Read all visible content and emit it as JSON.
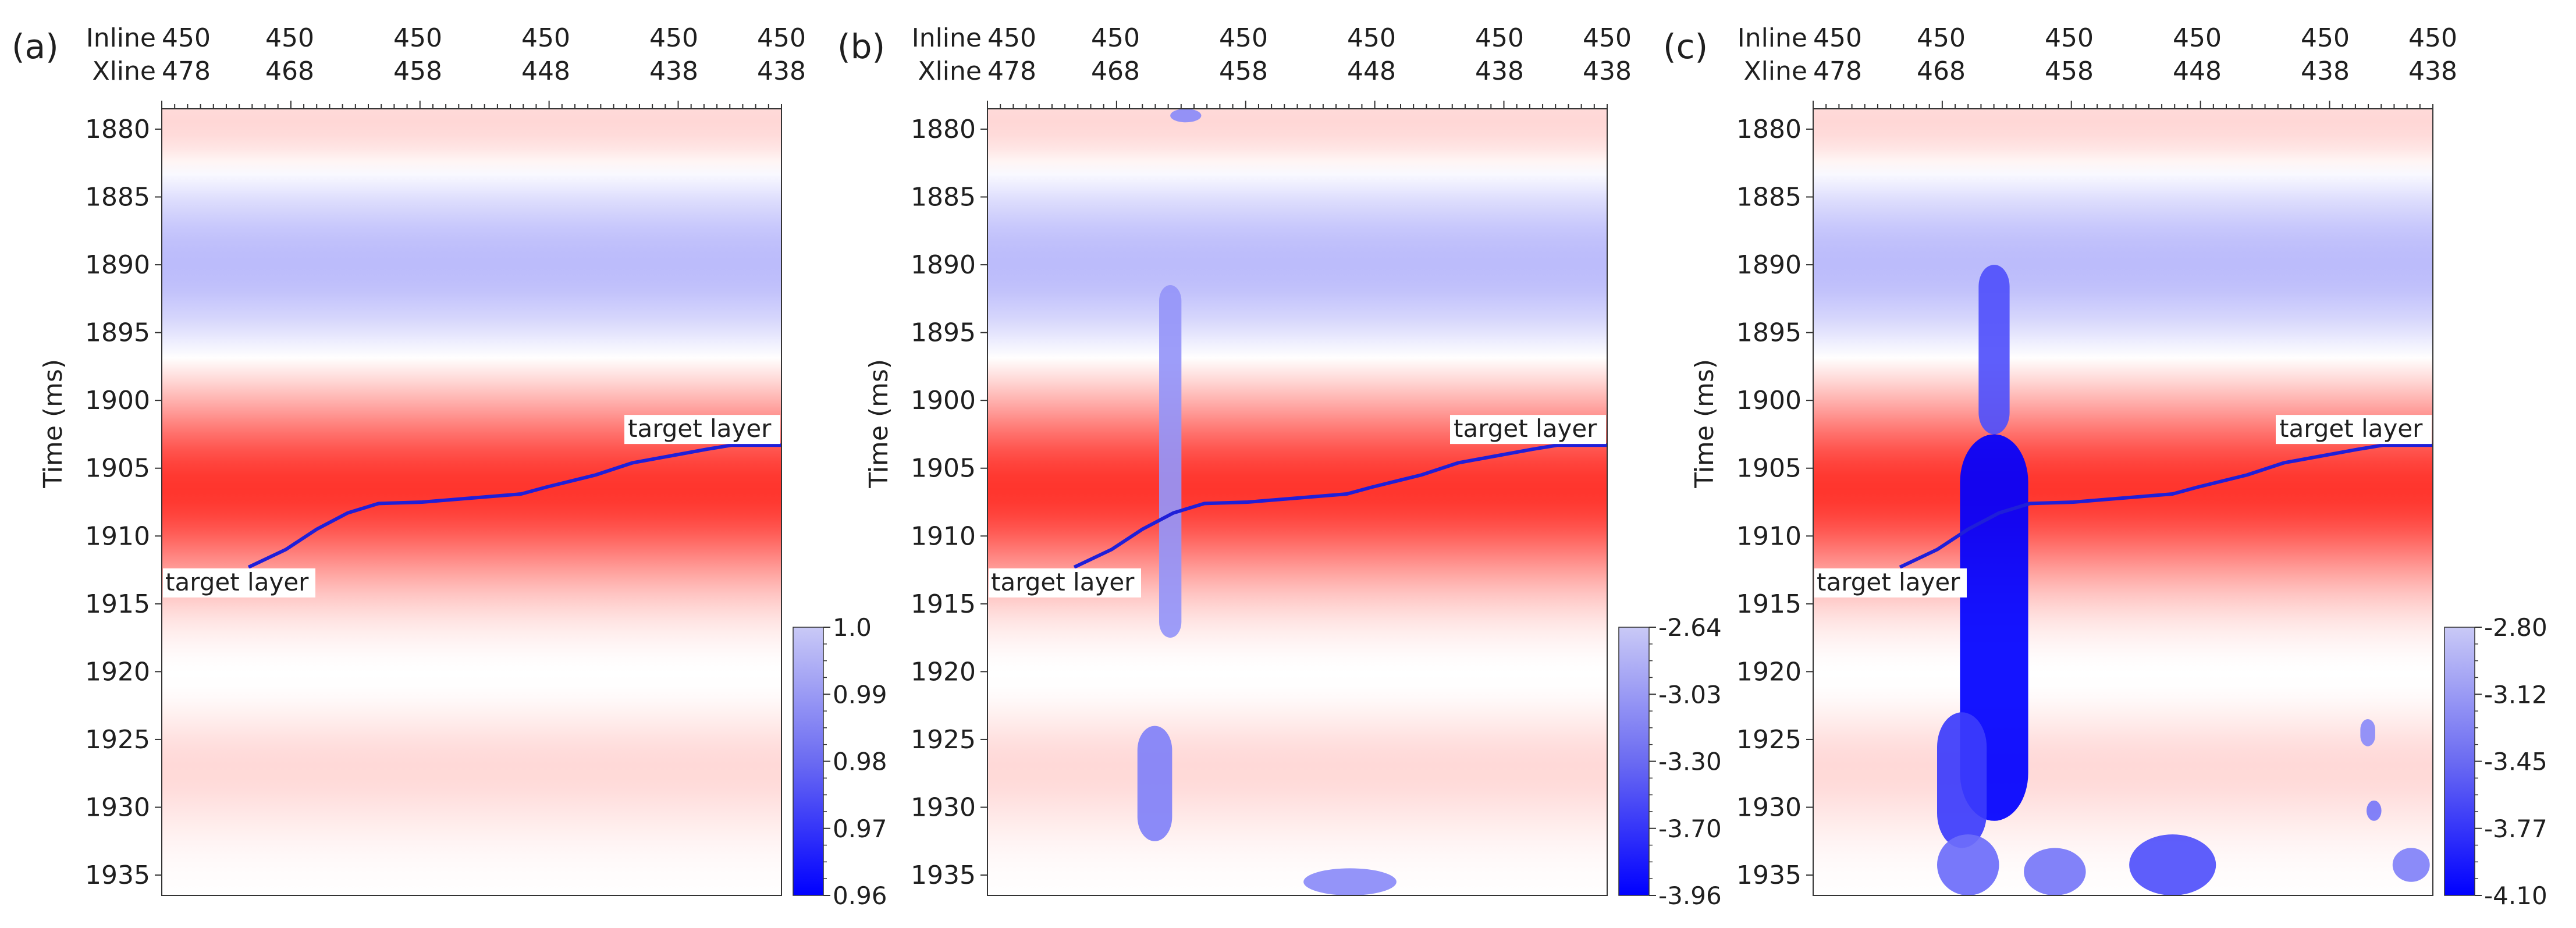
{
  "colors": {
    "red": "#ff2a22",
    "blue": "#0000ff",
    "horizon": "#1f1fd8",
    "white": "#ffffff"
  },
  "chart_data": [
    {
      "type": "heatmap",
      "panel": "(a)",
      "ylabel": "Time (ms)",
      "time_ticks": [
        1880,
        1885,
        1890,
        1895,
        1900,
        1905,
        1910,
        1915,
        1920,
        1925,
        1930,
        1935
      ],
      "ylim": [
        1936.5,
        1878.5
      ],
      "inline_label": "Inline",
      "xline_label": "Xline",
      "inline_ticks": [
        "450",
        "450",
        "450",
        "450",
        "450",
        "450"
      ],
      "xline_ticks": [
        "478",
        "468",
        "458",
        "448",
        "438",
        "438"
      ],
      "target_layer_labels": [
        "target layer",
        "target layer"
      ],
      "colorbar": {
        "labels": [
          "1.0",
          "0.99",
          "0.98",
          "0.97",
          "0.96"
        ],
        "range": [
          0.96,
          1.0
        ]
      },
      "anomalies": []
    },
    {
      "type": "heatmap",
      "panel": "(b)",
      "ylabel": "Time (ms)",
      "time_ticks": [
        1880,
        1885,
        1890,
        1895,
        1900,
        1905,
        1910,
        1915,
        1920,
        1925,
        1930,
        1935
      ],
      "ylim": [
        1936.5,
        1878.5
      ],
      "inline_label": "Inline",
      "xline_label": "Xline",
      "inline_ticks": [
        "450",
        "450",
        "450",
        "450",
        "450",
        "450"
      ],
      "xline_ticks": [
        "478",
        "468",
        "458",
        "448",
        "438",
        "438"
      ],
      "target_layer_labels": [
        "target layer",
        "target layer"
      ],
      "colorbar": {
        "labels": [
          "-2.64",
          "-3.03",
          "-3.30",
          "-3.70",
          "-3.96"
        ],
        "range": [
          -3.96,
          -2.64
        ]
      },
      "anomalies": [
        {
          "x": 0.295,
          "t0": 1891.5,
          "t1": 1917.5,
          "halfwidth": 0.018,
          "strength": 0.25
        },
        {
          "x": 0.27,
          "t0": 1924,
          "t1": 1932.5,
          "halfwidth": 0.028,
          "strength": 0.35
        },
        {
          "x": 0.32,
          "t0": 1878.5,
          "t1": 1879.5,
          "halfwidth": 0.025,
          "strength": 0.3
        },
        {
          "x": 0.585,
          "t0": 1934.5,
          "t1": 1936.5,
          "halfwidth": 0.075,
          "strength": 0.3
        }
      ]
    },
    {
      "type": "heatmap",
      "panel": "(c)",
      "ylabel": "Time (ms)",
      "time_ticks": [
        1880,
        1885,
        1890,
        1895,
        1900,
        1905,
        1910,
        1915,
        1920,
        1925,
        1930,
        1935
      ],
      "ylim": [
        1936.5,
        1878.5
      ],
      "inline_label": "Inline",
      "xline_label": "Xline",
      "inline_ticks": [
        "450",
        "450",
        "450",
        "450",
        "450",
        "450"
      ],
      "xline_ticks": [
        "478",
        "468",
        "458",
        "448",
        "438",
        "438"
      ],
      "target_layer_labels": [
        "target layer",
        "target layer"
      ],
      "colorbar": {
        "labels": [
          "-2.80",
          "-3.12",
          "-3.45",
          "-3.77",
          "-4.10"
        ],
        "range": [
          -4.1,
          -2.8
        ]
      },
      "anomalies": [
        {
          "x": 0.292,
          "t0": 1890,
          "t1": 1902.5,
          "halfwidth": 0.025,
          "strength": 0.6
        },
        {
          "x": 0.292,
          "t0": 1902.5,
          "t1": 1931,
          "halfwidth": 0.055,
          "strength": 1.0
        },
        {
          "x": 0.24,
          "t0": 1923,
          "t1": 1933,
          "halfwidth": 0.04,
          "strength": 0.7
        },
        {
          "x": 0.25,
          "t0": 1932,
          "t1": 1936.5,
          "halfwidth": 0.05,
          "strength": 0.45
        },
        {
          "x": 0.58,
          "t0": 1932,
          "t1": 1936.5,
          "halfwidth": 0.07,
          "strength": 0.6
        },
        {
          "x": 0.39,
          "t0": 1933,
          "t1": 1936.5,
          "halfwidth": 0.05,
          "strength": 0.4
        },
        {
          "x": 0.895,
          "t0": 1923.5,
          "t1": 1925.5,
          "halfwidth": 0.012,
          "strength": 0.3
        },
        {
          "x": 0.905,
          "t0": 1929.5,
          "t1": 1931,
          "halfwidth": 0.012,
          "strength": 0.4
        },
        {
          "x": 0.965,
          "t0": 1933,
          "t1": 1935.5,
          "halfwidth": 0.03,
          "strength": 0.35
        }
      ]
    }
  ]
}
